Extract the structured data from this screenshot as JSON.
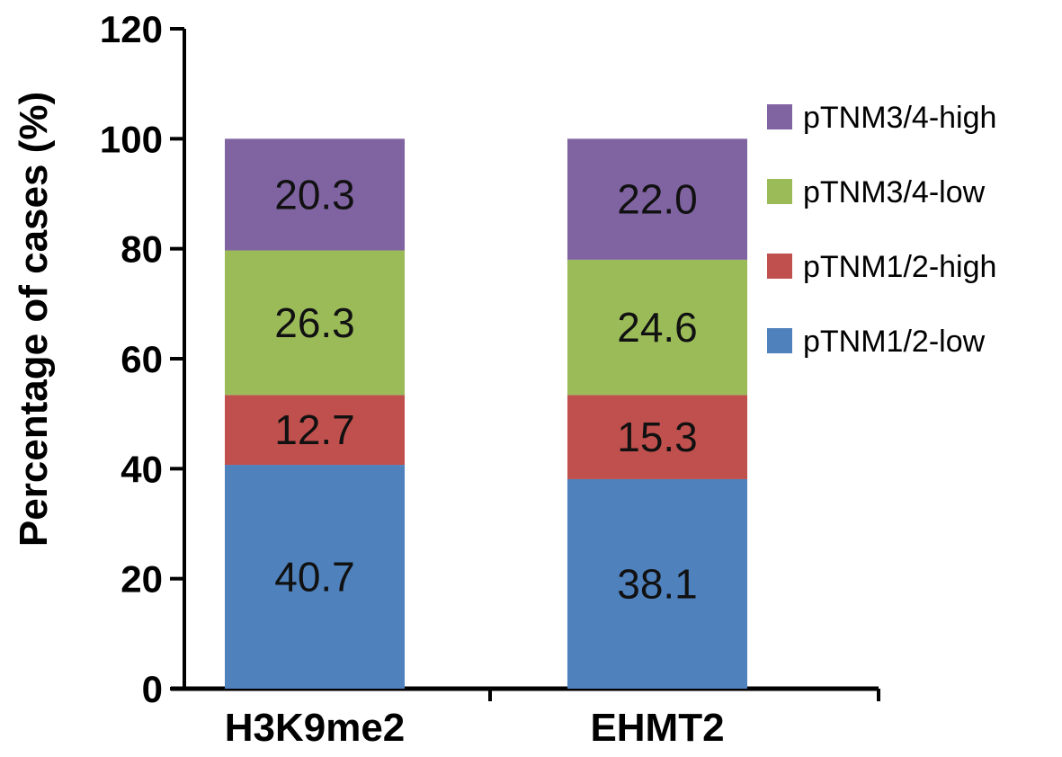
{
  "chart_data": {
    "type": "bar",
    "stacked": true,
    "categories": [
      "H3K9me2",
      "EHMT2"
    ],
    "series": [
      {
        "name": "pTNM1/2-low",
        "values": [
          40.7,
          38.1
        ],
        "color": "#4F81BD"
      },
      {
        "name": "pTNM1/2-high",
        "values": [
          12.7,
          15.3
        ],
        "color": "#C0504D"
      },
      {
        "name": "pTNM3/4-low",
        "values": [
          26.3,
          24.6
        ],
        "color": "#9BBB59"
      },
      {
        "name": "pTNM3/4-high",
        "values": [
          20.3,
          22.0
        ],
        "color": "#8064A2"
      }
    ],
    "ylabel": "Percentage of cases (%)",
    "ylim": [
      0,
      120
    ],
    "yticks": [
      0,
      20,
      40,
      60,
      80,
      100,
      120
    ],
    "grid": false,
    "legend": "right"
  }
}
